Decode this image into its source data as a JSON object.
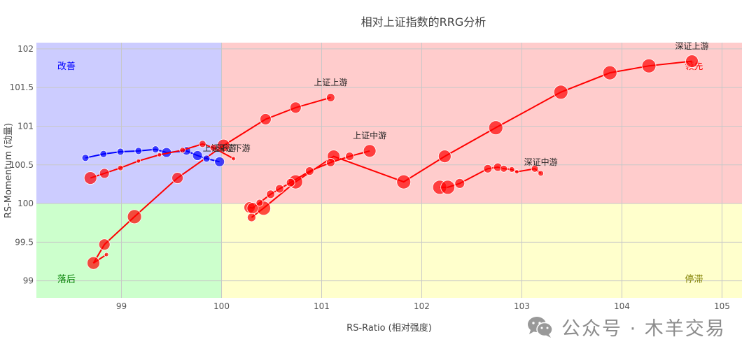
{
  "title": "相对上证指数的RRG分析",
  "watermark": {
    "text": "公众号 · 木羊交易",
    "icon": "wechat-icon"
  },
  "colors": {
    "improving_bg": "#ccccff",
    "leading_bg": "#ffcccc",
    "lagging_bg": "#ccffcc",
    "weakening_bg": "#ffffcc",
    "improving_text": "#0000ff",
    "leading_text": "#ff0000",
    "lagging_text": "#008000",
    "weakening_text": "#808000",
    "red_series": "#ff0000",
    "blue_series": "#0000ff",
    "grid": "#c8c8c8"
  },
  "chart_data": {
    "type": "scatter",
    "title": "相对上证指数的RRG分析",
    "xlabel": "RS-Ratio (相对强度)",
    "ylabel": "RS-Momentum (动量)",
    "xlim": [
      98.15,
      105.2
    ],
    "ylim": [
      98.78,
      102.08
    ],
    "xticks": [
      99,
      100,
      101,
      102,
      103,
      104,
      105
    ],
    "yticks": [
      99,
      99.5,
      100,
      100.5,
      101,
      101.5,
      102
    ],
    "grid": true,
    "legend": "none",
    "center": [
      100,
      100
    ],
    "quadrants": [
      {
        "name": "改善",
        "label_pos": [
          98.45,
          101.78
        ],
        "color": "#0000ff"
      },
      {
        "name": "领先",
        "label_pos": [
          104.72,
          101.78
        ],
        "color": "#ff0000"
      },
      {
        "name": "落后",
        "label_pos": [
          98.45,
          99.03
        ],
        "color": "#008000"
      },
      {
        "name": "停滞",
        "label_pos": [
          104.72,
          99.03
        ],
        "color": "#808000"
      }
    ],
    "series": [
      {
        "name": "深证上游",
        "color": "#ff0000",
        "x": [
          100.3,
          100.42,
          100.74,
          101.12,
          101.82,
          102.23,
          102.74,
          103.39,
          103.88,
          104.27,
          104.7
        ],
        "y": [
          99.82,
          99.94,
          100.28,
          100.61,
          100.28,
          100.61,
          100.98,
          101.44,
          101.69,
          101.78,
          101.84
        ],
        "sizes": [
          6,
          10,
          10,
          9,
          10,
          9,
          10,
          10,
          10,
          10,
          9
        ]
      },
      {
        "name": "上证上游",
        "color": "#ff0000",
        "x": [
          98.85,
          98.72,
          98.83,
          99.13,
          99.56,
          100.02,
          100.44,
          100.74,
          101.09
        ],
        "y": [
          99.34,
          99.23,
          99.47,
          99.83,
          100.33,
          100.75,
          101.09,
          101.24,
          101.37
        ],
        "sizes": [
          3,
          9,
          8,
          10,
          8,
          9,
          8,
          8,
          6
        ]
      },
      {
        "name": "上证中游",
        "color": "#ff0000",
        "x": [
          100.28,
          100.31,
          100.38,
          100.49,
          100.58,
          100.69,
          100.88,
          101.09,
          101.28,
          101.48
        ],
        "y": [
          99.95,
          99.94,
          100.01,
          100.12,
          100.19,
          100.27,
          100.42,
          100.53,
          100.61,
          100.68
        ],
        "sizes": [
          8,
          8,
          5,
          6,
          6,
          6,
          6,
          6,
          6,
          9
        ]
      },
      {
        "name": "深证中游",
        "color": "#ff0000",
        "x": [
          102.18,
          102.26,
          102.38,
          102.66,
          102.76,
          102.82,
          102.9,
          102.95,
          103.13,
          103.19
        ],
        "y": [
          100.21,
          100.21,
          100.26,
          100.45,
          100.47,
          100.45,
          100.44,
          100.41,
          100.45,
          100.39
        ],
        "sizes": [
          10,
          10,
          7,
          6,
          6,
          5,
          4,
          3,
          5,
          4
        ]
      },
      {
        "name": "上证下游",
        "color": "#0000ff",
        "x": [
          98.64,
          98.82,
          98.99,
          99.17,
          99.34,
          99.45,
          99.65,
          99.76,
          99.85,
          99.98
        ],
        "y": [
          100.59,
          100.64,
          100.67,
          100.68,
          100.7,
          100.66,
          100.68,
          100.62,
          100.58,
          100.54
        ],
        "sizes": [
          5,
          5,
          5,
          5,
          5,
          7,
          6,
          7,
          5,
          7
        ]
      },
      {
        "name": "深证下游",
        "color": "#ff0000",
        "x": [
          98.69,
          98.83,
          98.99,
          99.17,
          99.38,
          99.61,
          99.81,
          99.92,
          100.12
        ],
        "y": [
          100.33,
          100.39,
          100.46,
          100.55,
          100.63,
          100.69,
          100.77,
          100.72,
          100.58
        ],
        "sizes": [
          9,
          7,
          4,
          3,
          3,
          4,
          5,
          5,
          3
        ]
      }
    ],
    "annotations": [
      {
        "text": "深证上游",
        "x": 104.7,
        "y": 102.0
      },
      {
        "text": "上证上游",
        "x": 101.09,
        "y": 101.53
      },
      {
        "text": "上证中游",
        "x": 101.48,
        "y": 100.84
      },
      {
        "text": "深证中游",
        "x": 103.19,
        "y": 100.5
      },
      {
        "text": "上证下游",
        "x": 99.98,
        "y": 100.68
      },
      {
        "text": "深证下游",
        "x": 100.12,
        "y": 100.68
      }
    ]
  }
}
